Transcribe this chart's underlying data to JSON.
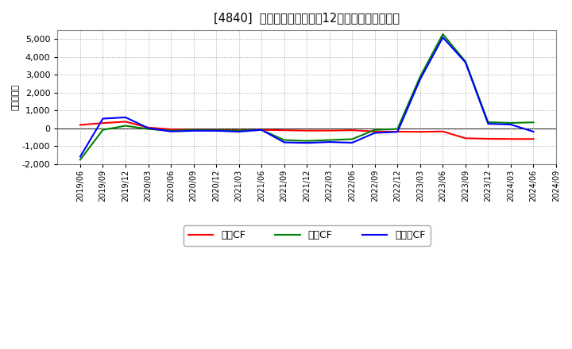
{
  "title": "[4840]  キャッシュフローの12か月移動合計の推移",
  "ylabel": "（百万円）",
  "x_labels": [
    "2019/06",
    "2019/09",
    "2019/12",
    "2020/03",
    "2020/06",
    "2020/09",
    "2020/12",
    "2021/03",
    "2021/06",
    "2021/09",
    "2021/12",
    "2022/03",
    "2022/06",
    "2022/09",
    "2022/12",
    "2023/03",
    "2023/06",
    "2023/09",
    "2023/12",
    "2024/03",
    "2024/06",
    "2024/09"
  ],
  "operating_cf": [
    200,
    300,
    380,
    50,
    -50,
    -70,
    -80,
    -100,
    -80,
    -100,
    -120,
    -120,
    -100,
    -170,
    -180,
    -190,
    -170,
    -550,
    -580,
    -590,
    -590,
    null
  ],
  "investing_cf": [
    -1750,
    -80,
    150,
    -30,
    -130,
    -80,
    -100,
    -120,
    -80,
    -650,
    -700,
    -650,
    -600,
    -80,
    -30,
    2900,
    5280,
    3750,
    350,
    310,
    340,
    null
  ],
  "free_cf": [
    -1580,
    550,
    620,
    20,
    -170,
    -130,
    -130,
    -180,
    -80,
    -780,
    -810,
    -760,
    -800,
    -250,
    -190,
    2750,
    5100,
    3700,
    260,
    220,
    -180,
    null
  ],
  "ylim": [
    -2000,
    5500
  ],
  "yticks": [
    -2000,
    -1000,
    0,
    1000,
    2000,
    3000,
    4000,
    5000
  ],
  "colors": {
    "operating": "#ff0000",
    "investing": "#008000",
    "free": "#0000ff"
  },
  "legend_labels": [
    "営業CF",
    "投資CF",
    "フリーCF"
  ],
  "bg_color": "#ffffff",
  "plot_bg_color": "#ffffff",
  "grid_color": "#999999",
  "linewidth": 1.5
}
